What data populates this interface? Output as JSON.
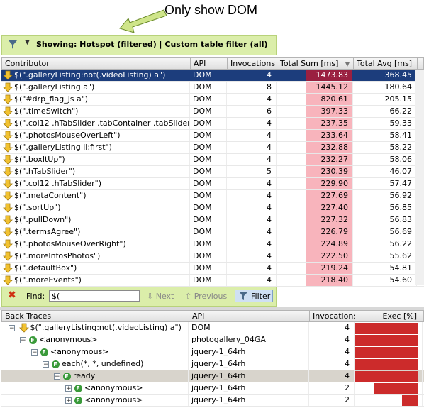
{
  "annotation": "Only show DOM",
  "filter_bar": {
    "text": "Showing: Hotspot (filtered) | Custom table filter (all)"
  },
  "top_table": {
    "headers": {
      "contributor": "Contributor",
      "api": "API",
      "invocations": "Invocations",
      "total_sum": "Total Sum [ms]",
      "total_avg": "Total Avg [ms]"
    },
    "rows": [
      {
        "contributor": "$(\".galleryListing:not(.videoListing) a\")",
        "api": "DOM",
        "invocations": "4",
        "total_sum": "1473.83",
        "total_avg": "368.45"
      },
      {
        "contributor": "$(\".galleryListing a\")",
        "api": "DOM",
        "invocations": "8",
        "total_sum": "1445.12",
        "total_avg": "180.64"
      },
      {
        "contributor": "$(\"#drp_flag_js a\")",
        "api": "DOM",
        "invocations": "4",
        "total_sum": "820.61",
        "total_avg": "205.15"
      },
      {
        "contributor": "$(\".timeSwitch\")",
        "api": "DOM",
        "invocations": "6",
        "total_sum": "397.33",
        "total_avg": "66.22"
      },
      {
        "contributor": "$(\".col12 .hTabSlider .tabContainer .tabSlider ....",
        "api": "DOM",
        "invocations": "4",
        "total_sum": "237.35",
        "total_avg": "59.33"
      },
      {
        "contributor": "$(\".photosMouseOverLeft\")",
        "api": "DOM",
        "invocations": "4",
        "total_sum": "233.64",
        "total_avg": "58.41"
      },
      {
        "contributor": "$(\".galleryListing li:first\")",
        "api": "DOM",
        "invocations": "4",
        "total_sum": "232.88",
        "total_avg": "58.22"
      },
      {
        "contributor": "$(\".boxItUp\")",
        "api": "DOM",
        "invocations": "4",
        "total_sum": "232.27",
        "total_avg": "58.06"
      },
      {
        "contributor": "$(\".hTabSlider\")",
        "api": "DOM",
        "invocations": "5",
        "total_sum": "230.39",
        "total_avg": "46.07"
      },
      {
        "contributor": "$(\".col12 .hTabSlider\")",
        "api": "DOM",
        "invocations": "4",
        "total_sum": "229.90",
        "total_avg": "57.47"
      },
      {
        "contributor": "$(\".metaContent\")",
        "api": "DOM",
        "invocations": "4",
        "total_sum": "227.69",
        "total_avg": "56.92"
      },
      {
        "contributor": "$(\".sortUp\")",
        "api": "DOM",
        "invocations": "4",
        "total_sum": "227.40",
        "total_avg": "56.85"
      },
      {
        "contributor": "$(\".pullDown\")",
        "api": "DOM",
        "invocations": "4",
        "total_sum": "227.32",
        "total_avg": "56.83"
      },
      {
        "contributor": "$(\".termsAgree\")",
        "api": "DOM",
        "invocations": "4",
        "total_sum": "226.79",
        "total_avg": "56.69"
      },
      {
        "contributor": "$(\".photosMouseOverRight\")",
        "api": "DOM",
        "invocations": "4",
        "total_sum": "224.89",
        "total_avg": "56.22"
      },
      {
        "contributor": "$(\".moreInfosPhotos\")",
        "api": "DOM",
        "invocations": "4",
        "total_sum": "222.50",
        "total_avg": "55.62"
      },
      {
        "contributor": "$(\".defaultBox\")",
        "api": "DOM",
        "invocations": "4",
        "total_sum": "219.24",
        "total_avg": "54.81"
      },
      {
        "contributor": "$(\".moreEvents\")",
        "api": "DOM",
        "invocations": "4",
        "total_sum": "218.40",
        "total_avg": "54.60"
      }
    ]
  },
  "find_bar": {
    "label": "Find:",
    "value": "$(",
    "next": "Next",
    "previous": "Previous",
    "filter": "Filter"
  },
  "bottom_table": {
    "headers": {
      "back_traces": "Back Traces",
      "api": "API",
      "invocations": "Invocations",
      "exec": "Exec [%]"
    },
    "rows": [
      {
        "label": "$(\".galleryListing:not(.videoListing) a\")",
        "api": "DOM",
        "invocations": "4",
        "exec_fraction": 1.0
      },
      {
        "label": "<anonymous>",
        "api": "photogallery_04GA",
        "invocations": "4",
        "exec_fraction": 1.0
      },
      {
        "label": "<anonymous>",
        "api": "jquery-1_64rh",
        "invocations": "4",
        "exec_fraction": 1.0
      },
      {
        "label": "each(*, *, undefined)",
        "api": "jquery-1_64rh",
        "invocations": "4",
        "exec_fraction": 1.0
      },
      {
        "label": "ready",
        "api": "jquery-1_64rh",
        "invocations": "4",
        "exec_fraction": 1.0
      },
      {
        "label": "<anonymous>",
        "api": "jquery-1_64rh",
        "invocations": "2",
        "exec_fraction": 0.7
      },
      {
        "label": "<anonymous>",
        "api": "jquery-1_64rh",
        "invocations": "2",
        "exec_fraction": 0.25
      }
    ]
  },
  "colors": {
    "selection": "#1c3d7c",
    "sum_highlight": "#f8b4bc",
    "exec_bar": "#cc2b2b",
    "filter_bar_bg": "#dbeeaa"
  }
}
